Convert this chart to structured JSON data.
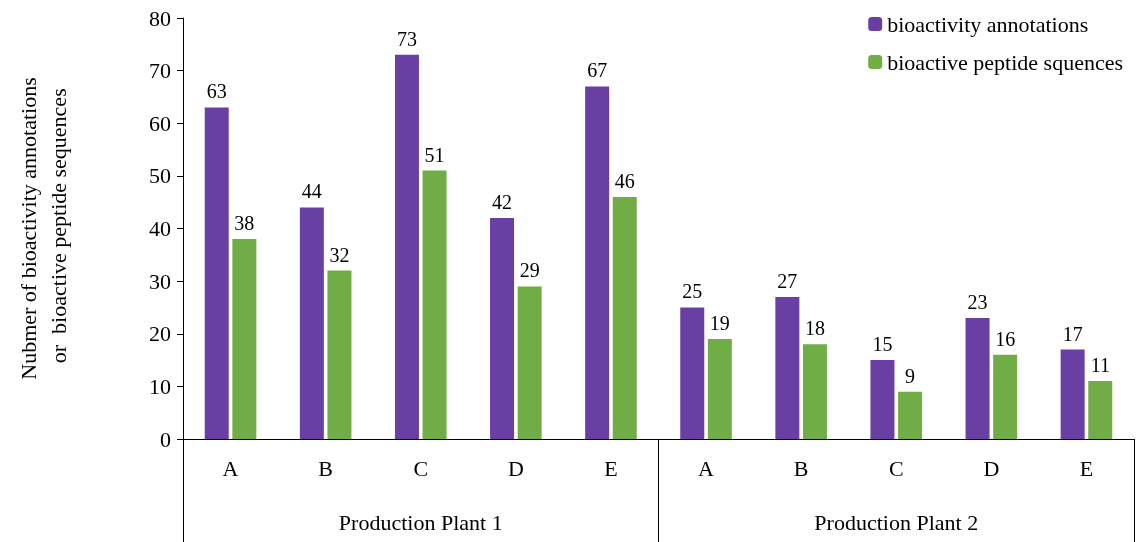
{
  "chart_data": {
    "type": "bar",
    "ylabel": "Nubmer of bioactivity annotations\n or  bioactive peptide sequences",
    "categories": [
      "A",
      "B",
      "C",
      "D",
      "E",
      "A",
      "B",
      "C",
      "D",
      "E"
    ],
    "series": [
      {
        "name": "bioactivity annotations",
        "color": "#6a3fa3",
        "values": [
          63,
          44,
          73,
          42,
          67,
          25,
          27,
          15,
          23,
          17
        ]
      },
      {
        "name": "bioactive peptide squences",
        "color": "#70ad47",
        "values": [
          38,
          32,
          51,
          29,
          46,
          19,
          18,
          9,
          16,
          11
        ]
      }
    ],
    "annotations": [
      "Production Plant 1",
      "Production Plant 2"
    ],
    "ylim": [
      0,
      80
    ],
    "yticks": [
      0,
      10,
      20,
      30,
      40,
      50,
      60,
      70,
      80
    ],
    "data_labels": true,
    "grid": false,
    "legend": "top right"
  }
}
